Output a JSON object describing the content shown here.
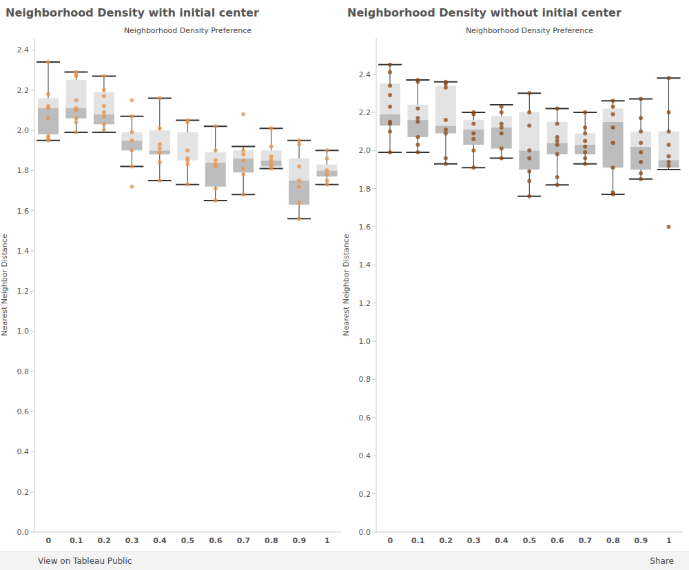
{
  "chart_data": [
    {
      "type": "boxplot",
      "title": "Neighborhood Density with initial center",
      "x_label": "Neighborhood Density Preference",
      "y_label": "Nearest Neighbor Distance",
      "categories": [
        "0",
        "0.1",
        "0.2",
        "0.3",
        "0.4",
        "0.5",
        "0.6",
        "0.7",
        "0.8",
        "0.9",
        "1"
      ],
      "min": [
        1.95,
        1.99,
        1.99,
        1.82,
        1.75,
        1.73,
        1.65,
        1.68,
        1.81,
        1.56,
        1.73
      ],
      "q1": [
        1.98,
        2.06,
        2.03,
        1.9,
        1.88,
        1.85,
        1.72,
        1.79,
        1.82,
        1.63,
        1.77
      ],
      "median": [
        2.11,
        2.11,
        2.08,
        1.95,
        1.9,
        1.85,
        1.84,
        1.86,
        1.85,
        1.75,
        1.8
      ],
      "q3": [
        2.16,
        2.25,
        2.19,
        1.99,
        2.0,
        1.99,
        1.89,
        1.9,
        1.9,
        1.86,
        1.83
      ],
      "max": [
        2.34,
        2.29,
        2.27,
        2.07,
        2.16,
        2.05,
        2.02,
        1.92,
        2.01,
        1.95,
        1.9
      ],
      "points": [
        [
          2.34,
          2.18,
          2.12,
          2.11,
          2.06,
          1.97,
          1.96,
          1.95
        ],
        [
          2.29,
          2.28,
          2.27,
          2.15,
          2.11,
          2.1,
          2.06,
          2.04,
          1.99
        ],
        [
          2.27,
          2.2,
          2.17,
          2.12,
          2.09,
          2.07,
          2.03,
          2.0
        ],
        [
          2.15,
          2.07,
          1.99,
          1.95,
          1.9,
          1.82,
          1.72
        ],
        [
          2.16,
          2.01,
          1.93,
          1.91,
          1.89,
          1.84,
          1.75
        ],
        [
          2.05,
          2.04,
          1.9,
          1.86,
          1.85,
          1.83,
          1.73
        ],
        [
          2.02,
          1.9,
          1.85,
          1.83,
          1.82,
          1.71,
          1.65
        ],
        [
          2.08,
          1.9,
          1.88,
          1.85,
          1.81,
          1.78,
          1.68
        ],
        [
          2.01,
          1.92,
          1.87,
          1.85,
          1.83,
          1.82,
          1.81
        ],
        [
          1.95,
          1.93,
          1.82,
          1.75,
          1.72,
          1.64,
          1.56
        ],
        [
          1.9,
          1.86,
          1.8,
          1.78,
          1.75,
          1.73
        ]
      ],
      "color": "#e8924a",
      "ylim": [
        0,
        2.46
      ],
      "yticks": [
        {
          "value": 0,
          "label": "0.0"
        },
        0.2,
        0.4,
        0.6,
        0.8,
        {
          "value": 1,
          "label": "1.0"
        },
        1.2,
        1.4,
        1.6,
        1.8,
        {
          "value": 2,
          "label": "2.0"
        },
        2.2,
        2.4
      ],
      "grid": false
    },
    {
      "type": "boxplot",
      "title": "Neighborhood Density without initial center",
      "x_label": "Neighborhood Density Preference",
      "y_label": "Nearest Neighbor Distance",
      "categories": [
        "0",
        "0.1",
        "0.2",
        "0.3",
        "0.4",
        "0.5",
        "0.6",
        "0.7",
        "0.8",
        "0.9",
        "1"
      ],
      "min": [
        1.99,
        1.99,
        1.93,
        1.91,
        1.96,
        1.76,
        1.82,
        1.93,
        1.77,
        1.85,
        1.9
      ],
      "q1": [
        2.13,
        2.07,
        2.09,
        2.03,
        2.01,
        1.9,
        1.98,
        1.98,
        1.91,
        1.9,
        1.91
      ],
      "median": [
        2.19,
        2.16,
        2.13,
        2.11,
        2.12,
        2.0,
        2.04,
        2.03,
        2.15,
        2.02,
        1.95
      ],
      "q3": [
        2.35,
        2.24,
        2.34,
        2.16,
        2.18,
        2.2,
        2.15,
        2.09,
        2.22,
        2.1,
        2.1
      ],
      "max": [
        2.45,
        2.37,
        2.36,
        2.2,
        2.24,
        2.3,
        2.22,
        2.2,
        2.26,
        2.27,
        2.38
      ],
      "points": [
        [
          2.45,
          2.41,
          2.34,
          2.29,
          2.23,
          2.15,
          2.14,
          2.1,
          1.99
        ],
        [
          2.37,
          2.36,
          2.22,
          2.17,
          2.15,
          2.07,
          2.03,
          1.99
        ],
        [
          2.36,
          2.35,
          2.33,
          2.16,
          2.11,
          2.09,
          1.96,
          1.93
        ],
        [
          2.2,
          2.19,
          2.14,
          2.09,
          2.06,
          2.0,
          1.91
        ],
        [
          2.23,
          2.2,
          2.14,
          2.12,
          2.09,
          2.01,
          1.96
        ],
        [
          2.3,
          2.2,
          2.13,
          2.0,
          1.96,
          1.89,
          1.84,
          1.76
        ],
        [
          2.22,
          2.14,
          2.07,
          2.05,
          2.03,
          1.98,
          1.86,
          1.82
        ],
        [
          2.2,
          2.12,
          2.09,
          2.05,
          2.02,
          1.99,
          1.96,
          1.93
        ],
        [
          2.26,
          2.23,
          2.19,
          2.12,
          2.04,
          1.91,
          1.78,
          1.77
        ],
        [
          2.27,
          2.17,
          2.1,
          2.04,
          1.99,
          1.94,
          1.88,
          1.85
        ],
        [
          2.38,
          2.2,
          2.1,
          2.03,
          1.97,
          1.94,
          1.92,
          1.6
        ]
      ],
      "color": "#8b4513",
      "ylim": [
        0,
        2.59
      ],
      "yticks": [
        {
          "value": 0,
          "label": "0.0"
        },
        0.2,
        0.4,
        0.6,
        0.8,
        {
          "value": 1,
          "label": "1.0"
        },
        1.2,
        1.4,
        1.6,
        1.8,
        {
          "value": 2,
          "label": "2.0"
        },
        2.2,
        2.4
      ],
      "grid": false
    }
  ],
  "footer": {
    "link": "View on Tableau Public",
    "share": "Share"
  }
}
